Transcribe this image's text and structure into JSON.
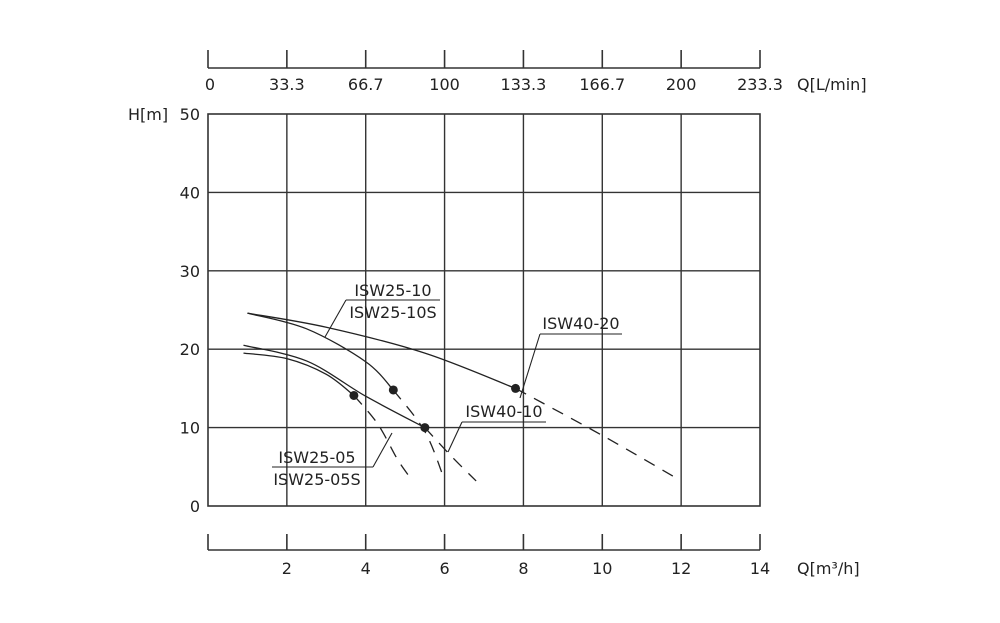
{
  "chart_data": {
    "type": "line",
    "x_axis": {
      "label": "Q[m³/h]",
      "range": [
        0,
        14
      ],
      "ticks": [
        2,
        4,
        6,
        8,
        10,
        12,
        14
      ]
    },
    "x2_axis": {
      "label": "Q[L/min]",
      "range": [
        0,
        233.3
      ],
      "ticks": [
        "0",
        "33.3",
        "66.7",
        "100",
        "133.3",
        "166.7",
        "200",
        "233.3"
      ]
    },
    "y_axis": {
      "label": "H[m]",
      "range": [
        0,
        50
      ],
      "ticks": [
        0,
        10,
        20,
        30,
        40,
        50
      ]
    },
    "grid": true,
    "series": [
      {
        "name": "ISW25-05",
        "solid": [
          [
            0.9,
            19.5
          ],
          [
            2.0,
            18.8
          ],
          [
            3.0,
            16.8
          ],
          [
            3.7,
            14.1
          ]
        ],
        "dashed": [
          [
            3.7,
            14.1
          ],
          [
            4.3,
            10.5
          ],
          [
            4.8,
            6.0
          ],
          [
            5.1,
            3.8
          ]
        ],
        "marker": [
          3.7,
          14.1
        ]
      },
      {
        "name": "ISW25-05S",
        "solid": [
          [
            0.9,
            20.5
          ],
          [
            2.5,
            18.5
          ],
          [
            4.0,
            14.0
          ],
          [
            5.5,
            10.0
          ]
        ],
        "dashed": [
          [
            5.5,
            10.0
          ],
          [
            6.2,
            6.2
          ],
          [
            6.8,
            3.2
          ]
        ],
        "marker": [
          5.5,
          10.0
        ]
      },
      {
        "name": "ISW25-10",
        "solid": [
          [
            1.0,
            24.6
          ],
          [
            2.5,
            22.6
          ],
          [
            4.0,
            18.4
          ],
          [
            4.7,
            14.8
          ]
        ],
        "dashed": [
          [
            4.7,
            14.8
          ],
          [
            5.5,
            9.5
          ],
          [
            6.0,
            3.3
          ]
        ],
        "marker": [
          4.7,
          14.8
        ]
      },
      {
        "name": "ISW25-10S",
        "solid": [],
        "dashed": [],
        "marker": null
      },
      {
        "name": "ISW40-10",
        "solid": [],
        "dashed": [],
        "marker": null
      },
      {
        "name": "ISW40-20",
        "solid": [
          [
            1.0,
            24.6
          ],
          [
            3.0,
            22.8
          ],
          [
            5.5,
            19.5
          ],
          [
            7.8,
            15.0
          ]
        ],
        "dashed": [
          [
            7.8,
            15.0
          ],
          [
            10.0,
            9.0
          ],
          [
            11.9,
            3.5
          ]
        ],
        "marker": [
          7.8,
          15.0
        ]
      }
    ],
    "annotations": [
      {
        "text": "ISW25-10",
        "group": "a"
      },
      {
        "text": "ISW25-10S",
        "group": "a"
      },
      {
        "text": "ISW40-20",
        "group": "b"
      },
      {
        "text": "ISW40-10",
        "group": "c"
      },
      {
        "text": "ISW25-05",
        "group": "d"
      },
      {
        "text": "ISW25-05S",
        "group": "d"
      }
    ]
  }
}
